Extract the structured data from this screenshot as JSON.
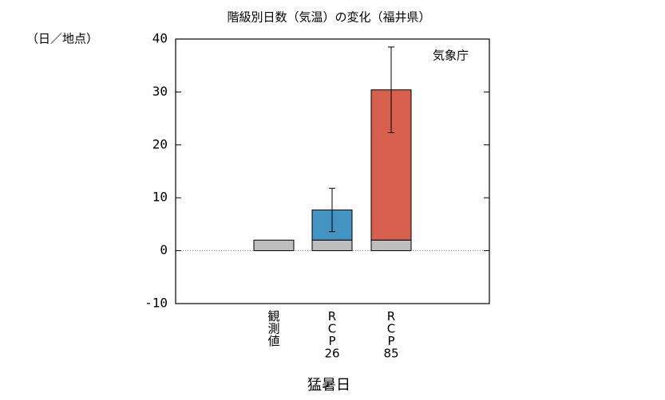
{
  "chart_data": {
    "type": "bar",
    "stacked": true,
    "title": "階級別日数（気温）の変化（福井県）",
    "y_unit": "（日／地点）",
    "annotation": "気象庁",
    "xlabel": "猛暑日",
    "categories": [
      "観測値",
      "RCP26",
      "RCP85"
    ],
    "series": [
      {
        "color": "#bebebe",
        "values": [
          2,
          2,
          2
        ]
      },
      {
        "color": "#4393c3",
        "values": [
          null,
          5.7,
          null
        ],
        "errors": [
          null,
          4.1,
          null
        ]
      },
      {
        "color": "#d6604d",
        "values": [
          null,
          null,
          28.4
        ],
        "errors": [
          null,
          null,
          8.1
        ]
      }
    ],
    "ylim": [
      -10,
      40
    ],
    "yticks": [
      -10,
      0,
      10,
      20,
      30,
      40
    ]
  }
}
